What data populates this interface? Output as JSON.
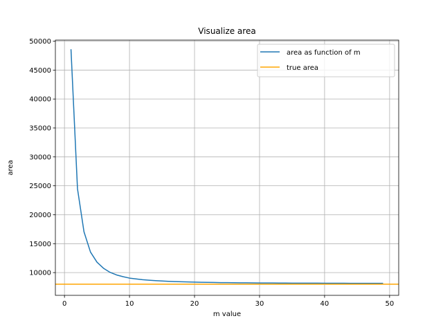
{
  "chart_data": {
    "type": "line",
    "title": "Visualize area",
    "xlabel": "m value",
    "ylabel": "area",
    "xlim": [
      -1.4,
      51.4
    ],
    "ylim": [
      6070,
      50180
    ],
    "xticks": [
      0,
      10,
      20,
      30,
      40,
      50
    ],
    "yticks": [
      10000,
      15000,
      20000,
      25000,
      30000,
      35000,
      40000,
      45000,
      50000
    ],
    "grid": true,
    "legend_position": "upper-right",
    "series": [
      {
        "name": "area as function of m",
        "color": "#1f77b4",
        "x": [
          1,
          2,
          3,
          4,
          5,
          6,
          7,
          8,
          9,
          10,
          11,
          12,
          13,
          14,
          15,
          16,
          17,
          18,
          19,
          20,
          21,
          22,
          23,
          24,
          25,
          26,
          27,
          28,
          29,
          30,
          31,
          32,
          33,
          34,
          35,
          36,
          37,
          38,
          39,
          40,
          41,
          42,
          43,
          44,
          45,
          46,
          47,
          48,
          49
        ],
        "values": [
          48600,
          24500,
          17050,
          13550,
          11800,
          10750,
          10050,
          9600,
          9300,
          9050,
          8910,
          8780,
          8690,
          8610,
          8550,
          8490,
          8450,
          8410,
          8380,
          8350,
          8330,
          8310,
          8290,
          8270,
          8260,
          8250,
          8240,
          8230,
          8220,
          8210,
          8200,
          8200,
          8190,
          8190,
          8180,
          8180,
          8170,
          8170,
          8170,
          8160,
          8160,
          8160,
          8160,
          8150,
          8150,
          8150,
          8150,
          8150,
          8140
        ]
      },
      {
        "name": "true area",
        "color": "#ffa500",
        "x": [
          -1.4,
          51.4
        ],
        "values": [
          8000,
          8000
        ]
      }
    ]
  }
}
